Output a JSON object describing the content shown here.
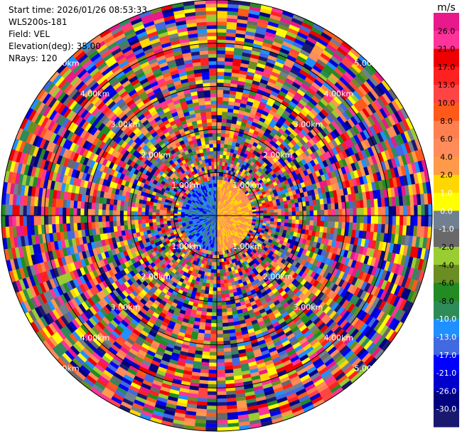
{
  "header": {
    "start_time": "Start time: 2026/01/26 08:53:33",
    "instrument": "WLS200s-181",
    "field": "Field: VEL",
    "elevation": "Elevation(deg): 35.00",
    "nrays": "NRays: 120"
  },
  "chart_data": {
    "type": "heatmap",
    "projection": "polar-ppi",
    "field": "VEL",
    "n_rays": 120,
    "range_rings_km": [
      1.0,
      2.0,
      3.0,
      4.0,
      5.0
    ],
    "ring_labels": [
      "1.00km",
      "2.00km",
      "3.00km",
      "4.00km",
      "5.00km"
    ],
    "colorbar": {
      "unit": "m/s",
      "ticks": [
        "26.0",
        "21.0",
        "17.0",
        "13.0",
        "10.0",
        "8.0",
        "6.0",
        "4.0",
        "2.0",
        "1.0",
        "0.0",
        "-1.0",
        "-2.0",
        "-4.0",
        "-6.0",
        "-8.0",
        "-10.0",
        "-13.0",
        "-17.0",
        "-21.0",
        "-26.0",
        "-30.0"
      ],
      "colors": [
        "#e8198a",
        "#ff3399",
        "#ee0000",
        "#ff2020",
        "#ff4444",
        "#ff5a1a",
        "#ff7f50",
        "#ff8c5a",
        "#ff9a4a",
        "#ffd700",
        "#ffff00",
        "#708090",
        "#696969",
        "#9acd32",
        "#6b8e23",
        "#228b22",
        "#2e8b57",
        "#1e90ff",
        "#4169e1",
        "#0000ff",
        "#0000cd",
        "#000080",
        "#191970"
      ]
    }
  }
}
